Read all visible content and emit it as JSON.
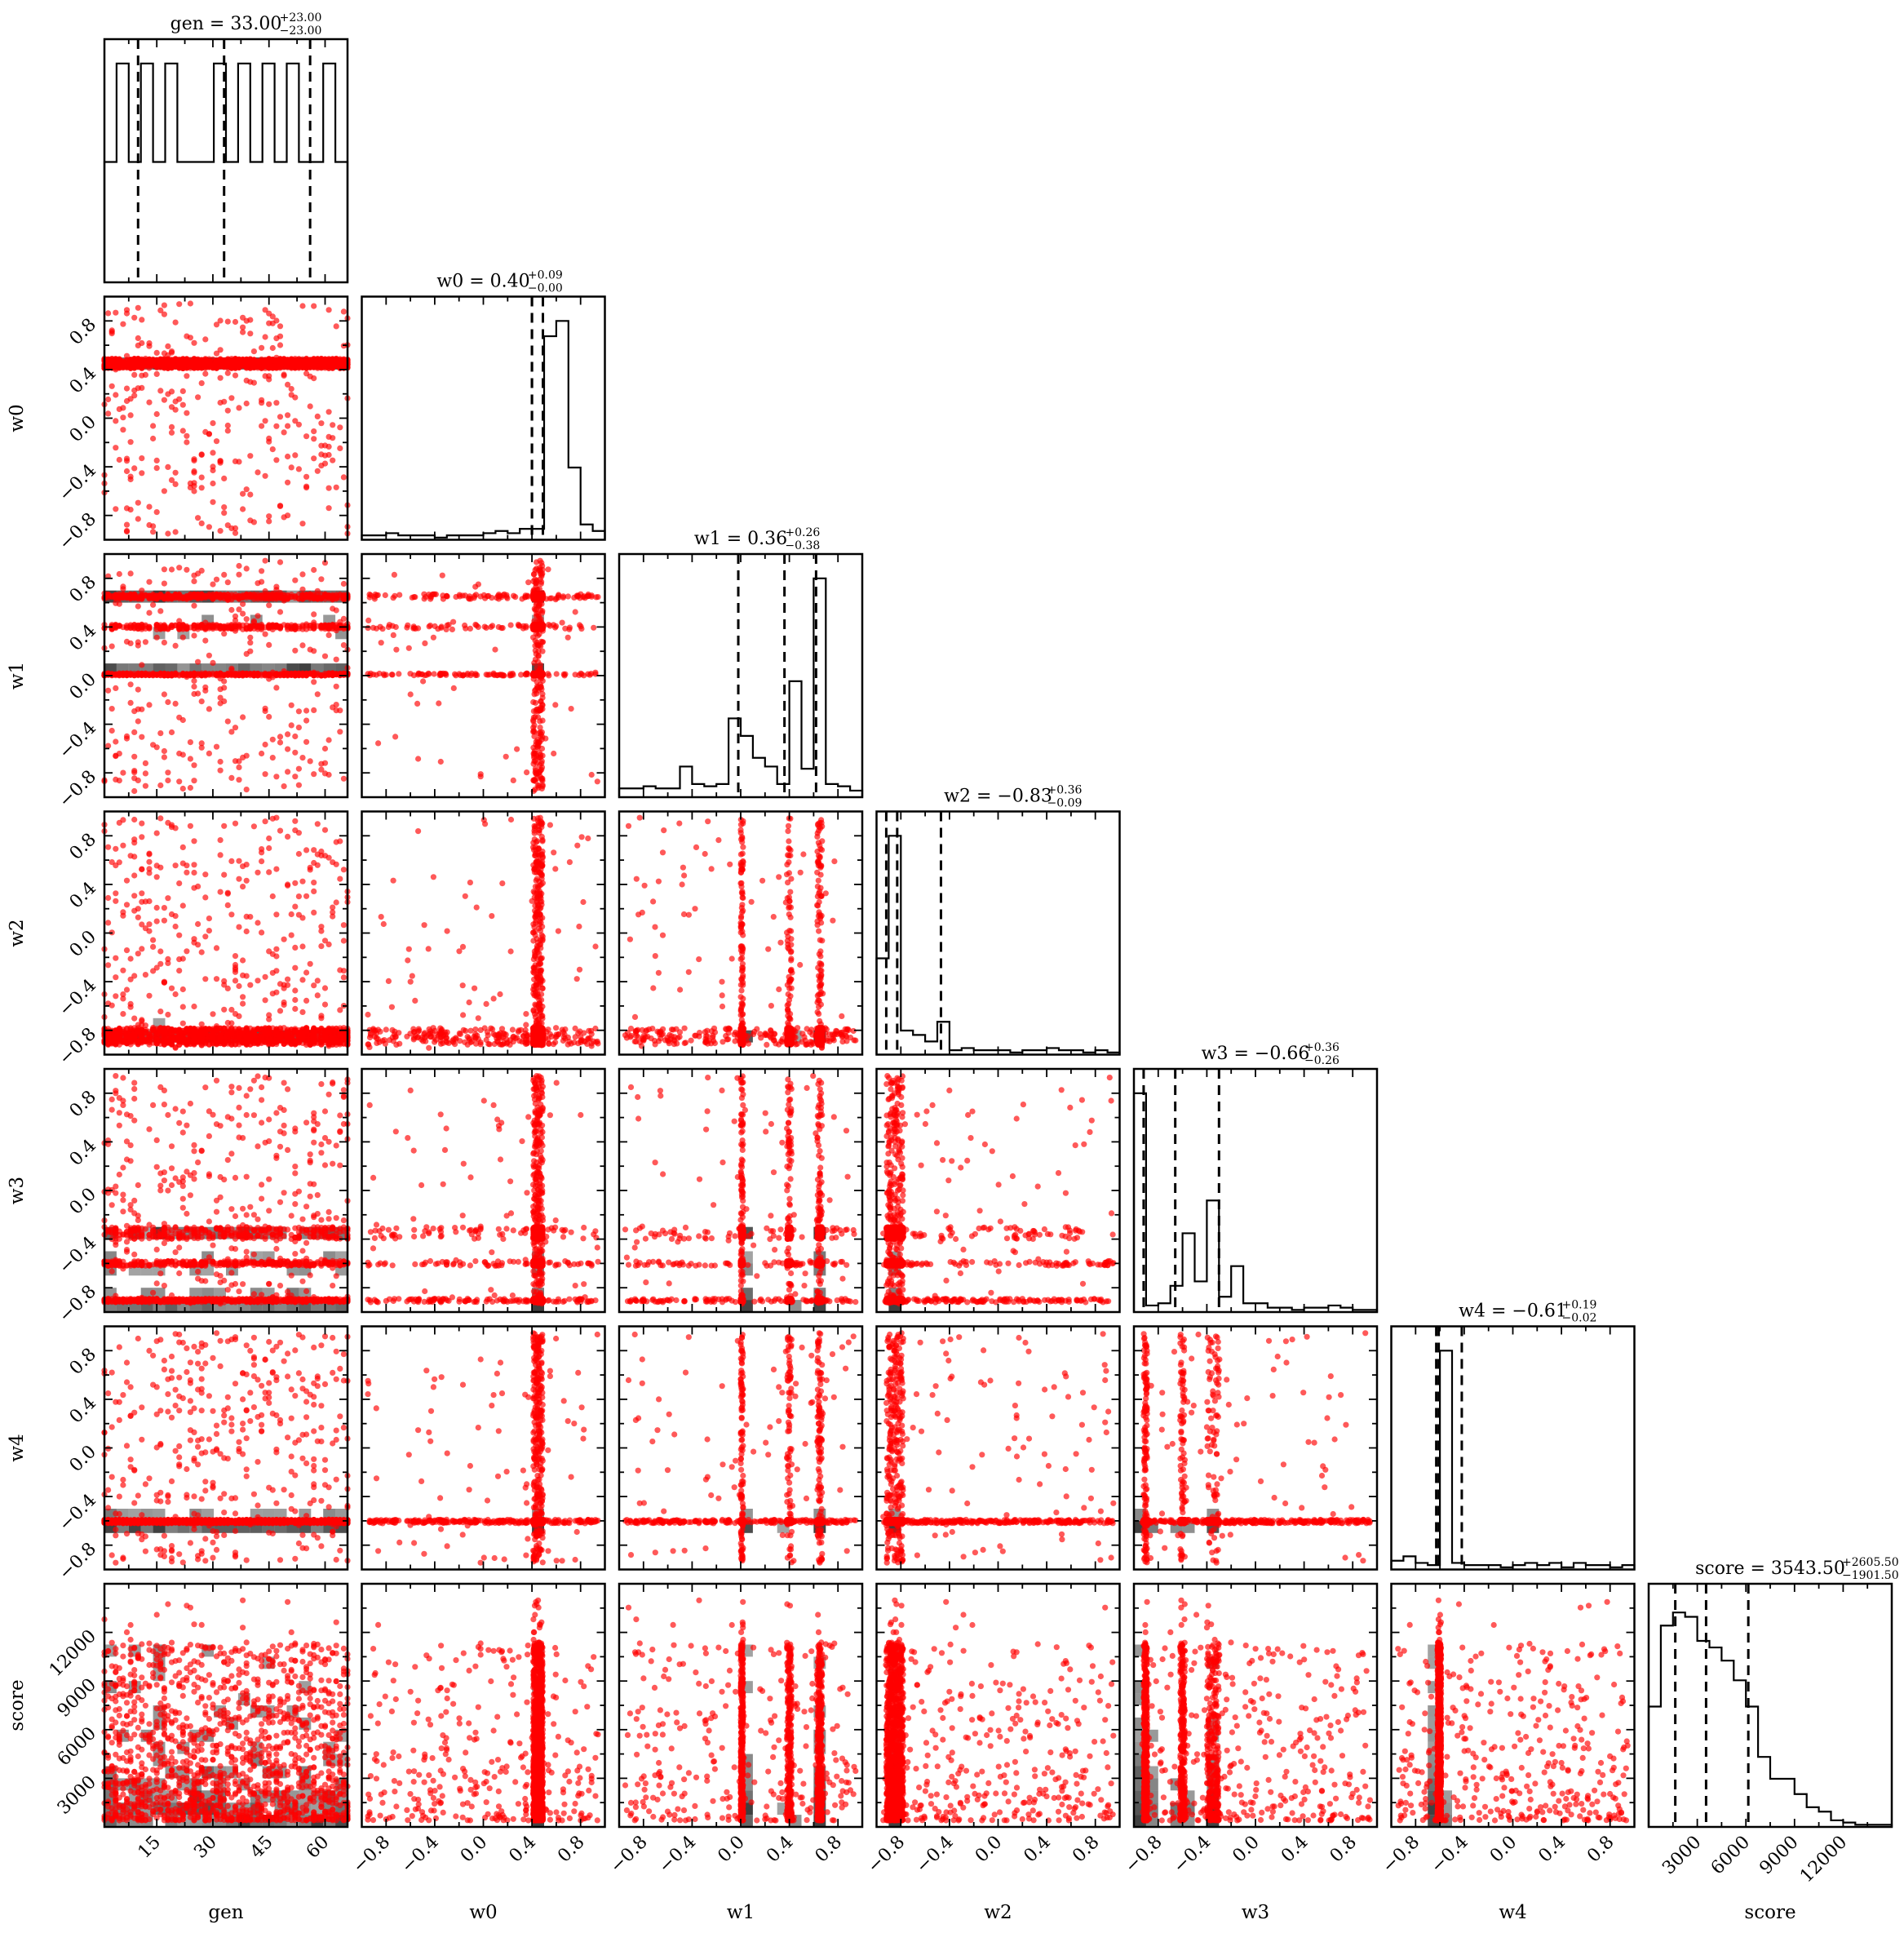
{
  "chart_data": {
    "type": "corner",
    "parameters": [
      "gen",
      "w0",
      "w1",
      "w2",
      "w3",
      "w4",
      "score"
    ],
    "axis_labels": [
      "gen",
      "w0",
      "w1",
      "w2",
      "w3",
      "w4",
      "score"
    ],
    "ranges": [
      [
        1,
        66
      ],
      [
        -1,
        1
      ],
      [
        -1,
        1
      ],
      [
        -1,
        1
      ],
      [
        -1,
        1
      ],
      [
        -1,
        1
      ],
      [
        0,
        15000
      ]
    ],
    "ticks": [
      {
        "values": [
          15,
          30,
          45,
          60
        ],
        "labels": [
          "15",
          "30",
          "45",
          "60"
        ]
      },
      {
        "values": [
          -0.8,
          -0.4,
          0.0,
          0.4,
          0.8
        ],
        "labels": [
          "−0.8",
          "−0.4",
          "0.0",
          "0.4",
          "0.8"
        ]
      },
      {
        "values": [
          -0.8,
          -0.4,
          0.0,
          0.4,
          0.8
        ],
        "labels": [
          "−0.8",
          "−0.4",
          "0.0",
          "0.4",
          "0.8"
        ]
      },
      {
        "values": [
          -0.8,
          -0.4,
          0.0,
          0.4,
          0.8
        ],
        "labels": [
          "−0.8",
          "−0.4",
          "0.0",
          "0.4",
          "0.8"
        ]
      },
      {
        "values": [
          -0.8,
          -0.4,
          0.0,
          0.4,
          0.8
        ],
        "labels": [
          "−0.8",
          "−0.4",
          "0.0",
          "0.4",
          "0.8"
        ]
      },
      {
        "values": [
          -0.8,
          -0.4,
          0.0,
          0.4,
          0.8
        ],
        "labels": [
          "−0.8",
          "−0.4",
          "0.0",
          "0.4",
          "0.8"
        ]
      },
      {
        "values": [
          3000,
          6000,
          9000,
          12000
        ],
        "labels": [
          "3000",
          "6000",
          "9000",
          "12000"
        ]
      }
    ],
    "titles": [
      {
        "name": "gen",
        "median": "33.00",
        "plus": "+23.00",
        "minus": "−23.00"
      },
      {
        "name": "w0",
        "median": "0.40",
        "plus": "+0.09",
        "minus": "−0.00"
      },
      {
        "name": "w1",
        "median": "0.36",
        "plus": "+0.26",
        "minus": "−0.38"
      },
      {
        "name": "w2",
        "median": "−0.83",
        "plus": "+0.36",
        "minus": "−0.09"
      },
      {
        "name": "w3",
        "median": "−0.66",
        "plus": "+0.36",
        "minus": "−0.26"
      },
      {
        "name": "w4",
        "median": "−0.61",
        "plus": "+0.19",
        "minus": "−0.02"
      },
      {
        "name": "score",
        "median": "3543.50",
        "plus": "+2605.50",
        "minus": "−1901.50"
      }
    ],
    "quantiles": [
      [
        10,
        33,
        56
      ],
      [
        0.4,
        0.4,
        0.49
      ],
      [
        -0.02,
        0.36,
        0.62
      ],
      [
        -0.92,
        -0.83,
        -0.47
      ],
      [
        -0.92,
        -0.66,
        -0.3
      ],
      [
        -0.63,
        -0.61,
        -0.42
      ],
      [
        1642,
        3543.5,
        6149
      ]
    ],
    "histograms": [
      [
        0.55,
        1.0,
        0.55,
        1.0,
        0.55,
        1.0,
        0.55,
        0.55,
        0.55,
        1.0,
        0.55,
        1.0,
        0.55,
        1.0,
        0.55,
        1.0,
        0.55,
        0.55,
        1.0,
        0.55
      ],
      [
        0.02,
        0.02,
        0.03,
        0.02,
        0.02,
        0.02,
        0.01,
        0.02,
        0.02,
        0.02,
        0.03,
        0.04,
        0.03,
        0.05,
        0.05,
        0.93,
        1.0,
        0.33,
        0.07,
        0.04
      ],
      [
        0.04,
        0.04,
        0.05,
        0.04,
        0.04,
        0.14,
        0.06,
        0.05,
        0.06,
        0.36,
        0.28,
        0.18,
        0.14,
        0.06,
        0.53,
        0.13,
        1.0,
        0.06,
        0.05,
        0.03
      ],
      [
        0.44,
        1.0,
        0.11,
        0.09,
        0.06,
        0.15,
        0.02,
        0.03,
        0.02,
        0.02,
        0.02,
        0.01,
        0.02,
        0.02,
        0.03,
        0.02,
        0.02,
        0.01,
        0.02,
        0.01
      ],
      [
        1.0,
        0.03,
        0.04,
        0.12,
        0.36,
        0.14,
        0.51,
        0.07,
        0.21,
        0.04,
        0.04,
        0.02,
        0.02,
        0.01,
        0.02,
        0.02,
        0.03,
        0.02,
        0.01,
        0.01
      ],
      [
        0.04,
        0.06,
        0.03,
        0.02,
        1.0,
        0.03,
        0.02,
        0.02,
        0.02,
        0.01,
        0.02,
        0.03,
        0.02,
        0.03,
        0.01,
        0.03,
        0.02,
        0.02,
        0.01,
        0.02
      ],
      [
        0.55,
        0.92,
        0.98,
        0.96,
        0.85,
        0.82,
        0.76,
        0.67,
        0.55,
        0.32,
        0.22,
        0.22,
        0.15,
        0.09,
        0.07,
        0.03,
        0.02,
        0.01,
        0.01,
        0.01
      ]
    ],
    "samples_note": "Pairwise scatter panels plot the posterior samples as red points over grey 2D density bins; samples are concentrated near w0≈0.45, w1∈{0.0,0.4,0.65}, w2≈-0.85, w3≈-0.9/-0.6/-0.3, w4≈-0.6, score mostly below 6000."
  }
}
